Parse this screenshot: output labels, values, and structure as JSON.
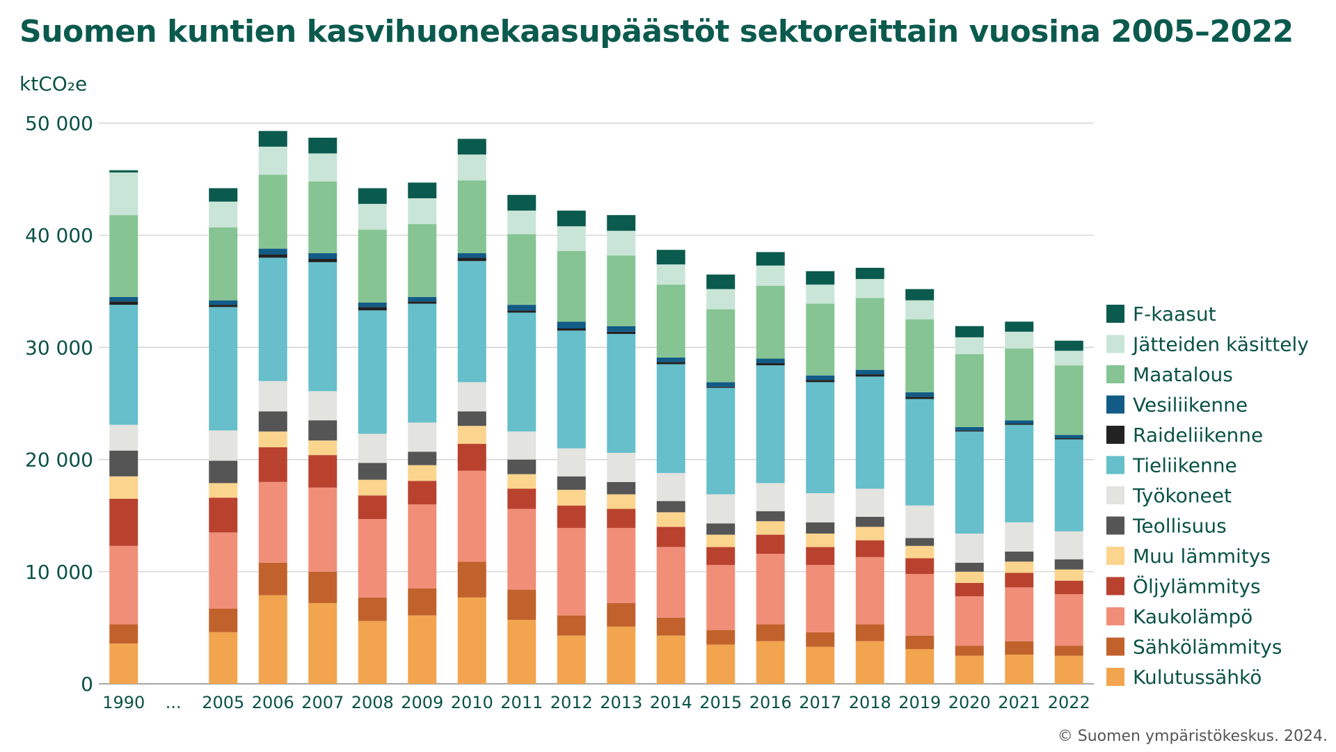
{
  "page": {
    "title": "Suomen kuntien kasvihuonekaasupäästöt sektoreittain vuosina 2005–2022",
    "source": "© Suomen ympäristökeskus. 2024."
  },
  "chart_data": {
    "type": "bar",
    "stacked": true,
    "title": "Suomen kuntien kasvihuonekaasupäästöt sektoreittain vuosina 2005–2022",
    "ylabel": "ktCO₂e",
    "xlabel": "",
    "ylim": [
      0,
      50000
    ],
    "y_ticks": [
      0,
      10000,
      20000,
      30000,
      40000,
      50000
    ],
    "y_tick_labels": [
      "0",
      "10 000",
      "20 000",
      "30 000",
      "40 000",
      "50 000"
    ],
    "grid": true,
    "legend_position": "right",
    "categories": [
      "1990",
      "...",
      "2005",
      "2006",
      "2007",
      "2008",
      "2009",
      "2010",
      "2011",
      "2012",
      "2013",
      "2014",
      "2015",
      "2016",
      "2017",
      "2018",
      "2019",
      "2020",
      "2021",
      "2022"
    ],
    "series": [
      {
        "name": "Kulutussähkö",
        "color": "#f2a54e",
        "values": [
          3600,
          null,
          4600,
          7900,
          7200,
          5600,
          6100,
          7700,
          5700,
          4300,
          5100,
          4300,
          3500,
          3800,
          3300,
          3800,
          3100,
          2500,
          2600,
          2500
        ]
      },
      {
        "name": "Sähkölämmitys",
        "color": "#c1622c",
        "values": [
          1700,
          null,
          2100,
          2900,
          2800,
          2100,
          2400,
          3200,
          2700,
          1800,
          2100,
          1600,
          1300,
          1500,
          1300,
          1500,
          1200,
          900,
          1200,
          900
        ]
      },
      {
        "name": "Kaukolämpö",
        "color": "#f08e78",
        "values": [
          7000,
          null,
          6800,
          7200,
          7500,
          7000,
          7500,
          8100,
          7200,
          7800,
          6700,
          6300,
          5800,
          6300,
          6000,
          6000,
          5500,
          4400,
          4800,
          4600
        ]
      },
      {
        "name": "Öljylämmitys",
        "color": "#b9422f",
        "values": [
          4200,
          null,
          3100,
          3100,
          2900,
          2100,
          2100,
          2400,
          1800,
          2000,
          1700,
          1800,
          1600,
          1700,
          1600,
          1500,
          1400,
          1200,
          1300,
          1200
        ]
      },
      {
        "name": "Muu lämmitys",
        "color": "#fbd48d",
        "values": [
          2000,
          null,
          1300,
          1400,
          1300,
          1400,
          1400,
          1600,
          1300,
          1400,
          1300,
          1300,
          1100,
          1200,
          1200,
          1200,
          1100,
          1000,
          1000,
          1000
        ]
      },
      {
        "name": "Teollisuus",
        "color": "#555555",
        "values": [
          2300,
          null,
          2000,
          1800,
          1800,
          1500,
          1200,
          1300,
          1300,
          1200,
          1100,
          1000,
          1000,
          900,
          1000,
          900,
          700,
          800,
          900,
          900
        ]
      },
      {
        "name": "Työkoneet",
        "color": "#e3e3df",
        "values": [
          2300,
          null,
          2700,
          2700,
          2600,
          2600,
          2600,
          2600,
          2500,
          2500,
          2600,
          2500,
          2600,
          2500,
          2600,
          2500,
          2900,
          2600,
          2600,
          2500
        ]
      },
      {
        "name": "Tieliikenne",
        "color": "#66bfcb",
        "values": [
          10700,
          null,
          11000,
          11000,
          11500,
          11000,
          10600,
          10800,
          10600,
          10500,
          10600,
          9700,
          9500,
          10500,
          9900,
          10000,
          9500,
          9100,
          8700,
          8200
        ]
      },
      {
        "name": "Raideliikenne",
        "color": "#222222",
        "values": [
          300,
          null,
          200,
          300,
          300,
          300,
          200,
          300,
          200,
          200,
          200,
          200,
          100,
          200,
          200,
          200,
          200,
          100,
          100,
          100
        ]
      },
      {
        "name": "Vesiliikenne",
        "color": "#115b86",
        "values": [
          400,
          null,
          400,
          500,
          500,
          400,
          400,
          400,
          500,
          600,
          500,
          400,
          400,
          400,
          400,
          400,
          400,
          300,
          300,
          300
        ]
      },
      {
        "name": "Maatalous",
        "color": "#86c493",
        "values": [
          7300,
          null,
          6500,
          6600,
          6400,
          6500,
          6500,
          6500,
          6300,
          6300,
          6300,
          6500,
          6500,
          6500,
          6400,
          6400,
          6500,
          6500,
          6400,
          6200
        ]
      },
      {
        "name": "Jätteiden käsittely",
        "color": "#c9e5d7",
        "values": [
          3800,
          null,
          2300,
          2500,
          2500,
          2300,
          2300,
          2300,
          2100,
          2200,
          2200,
          1800,
          1800,
          1800,
          1700,
          1700,
          1700,
          1500,
          1500,
          1300
        ]
      },
      {
        "name": "F-kaasut",
        "color": "#0b5a4e",
        "values": [
          200,
          null,
          1200,
          1400,
          1400,
          1400,
          1400,
          1400,
          1400,
          1400,
          1400,
          1300,
          1300,
          1200,
          1200,
          1000,
          1000,
          1000,
          900,
          900
        ]
      }
    ]
  }
}
